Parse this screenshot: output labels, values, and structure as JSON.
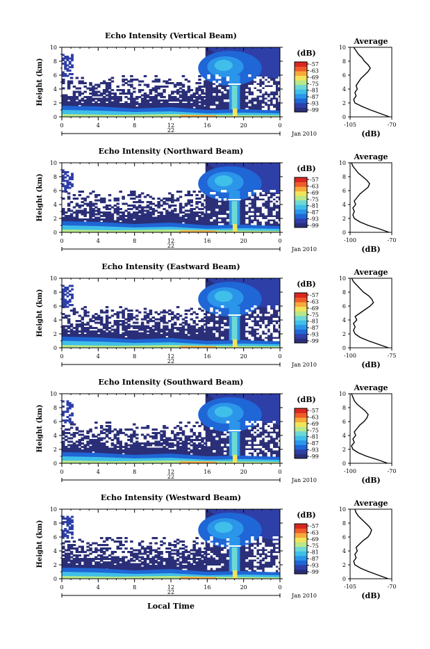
{
  "figure": {
    "xlabel_bottom": "Local Time",
    "date_label": "Jan 2010",
    "day_label": "22"
  },
  "colors": {
    "scale": [
      "#2a2f7a",
      "#2e3fa8",
      "#1f66d6",
      "#2b95ea",
      "#3fbfe9",
      "#6fd8d4",
      "#b8e889",
      "#f2e45a",
      "#f7a93a",
      "#ef5b2a",
      "#d9271f"
    ],
    "background": "#ffffff",
    "clutter": "#2b2f78"
  },
  "chart_data": [
    {
      "type": "heatmap",
      "title": "Echo Intensity (Vertical Beam)",
      "ylabel": "Height (km)",
      "xticks": [
        "0",
        "4",
        "8",
        "12",
        "16",
        "20",
        "0"
      ],
      "yticks": [
        "0",
        "2",
        "4",
        "6",
        "8",
        "10"
      ],
      "xlim": [
        0,
        24
      ],
      "ylim": [
        0,
        10
      ],
      "colorbar": {
        "label": "(dB)",
        "ticks": [
          "-57",
          "-63",
          "-69",
          "-75",
          "-81",
          "-87",
          "-93",
          "-99"
        ]
      },
      "profile": {
        "title": "Average",
        "xlabel": "(dB)",
        "xticks": [
          "-105",
          "-70"
        ],
        "xlim": [
          -105,
          -70
        ],
        "yticks": [
          "0",
          "2",
          "4",
          "6",
          "8",
          "10"
        ],
        "heights": [
          0,
          0.5,
          1,
          1.5,
          2,
          2.5,
          3,
          3.5,
          4,
          4.5,
          5,
          5.5,
          6,
          6.5,
          7,
          7.5,
          8,
          8.5,
          9,
          9.5,
          10
        ],
        "values": [
          -72,
          -80,
          -88,
          -95,
          -101,
          -102,
          -100,
          -101,
          -99,
          -100,
          -98,
          -96,
          -93,
          -90,
          -88,
          -90,
          -93,
          -95,
          -98,
          -100,
          -102
        ]
      }
    },
    {
      "type": "heatmap",
      "title": "Echo Intensity (Northward Beam)",
      "ylabel": "Height (km)",
      "xticks": [
        "0",
        "4",
        "8",
        "12",
        "16",
        "20",
        "0"
      ],
      "yticks": [
        "0",
        "2",
        "4",
        "6",
        "8",
        "10"
      ],
      "xlim": [
        0,
        24
      ],
      "ylim": [
        0,
        10
      ],
      "colorbar": {
        "label": "(dB)",
        "ticks": [
          "-57",
          "-63",
          "-69",
          "-75",
          "-81",
          "-87",
          "-93",
          "-99"
        ]
      },
      "profile": {
        "title": "Average",
        "xlabel": "(dB)",
        "xticks": [
          "-100",
          "-70"
        ],
        "xlim": [
          -100,
          -70
        ],
        "yticks": [
          "0",
          "2",
          "4",
          "6",
          "8",
          "10"
        ],
        "heights": [
          0,
          0.5,
          1,
          1.5,
          2,
          2.5,
          3,
          3.5,
          4,
          4.5,
          5,
          5.5,
          6,
          6.5,
          7,
          7.5,
          8,
          8.5,
          9,
          9.5,
          10
        ],
        "values": [
          -72,
          -79,
          -87,
          -93,
          -97,
          -98,
          -97,
          -98,
          -96,
          -97,
          -95,
          -93,
          -90,
          -87,
          -86,
          -88,
          -91,
          -94,
          -96,
          -98,
          -99
        ]
      }
    },
    {
      "type": "heatmap",
      "title": "Echo Intensity (Eastward Beam)",
      "ylabel": "Height (km)",
      "xticks": [
        "0",
        "4",
        "8",
        "12",
        "16",
        "20",
        "0"
      ],
      "yticks": [
        "0",
        "2",
        "4",
        "6",
        "8",
        "10"
      ],
      "xlim": [
        0,
        24
      ],
      "ylim": [
        0,
        10
      ],
      "colorbar": {
        "label": "(dB)",
        "ticks": [
          "-57",
          "-63",
          "-69",
          "-75",
          "-81",
          "-87",
          "-93",
          "-99"
        ]
      },
      "profile": {
        "title": "Average",
        "xlabel": "(dB)",
        "xticks": [
          "-100",
          "-75"
        ],
        "xlim": [
          -100,
          -75
        ],
        "yticks": [
          "0",
          "2",
          "4",
          "6",
          "8",
          "10"
        ],
        "heights": [
          0,
          0.5,
          1,
          1.5,
          2,
          2.5,
          3,
          3.5,
          4,
          4.5,
          5,
          5.5,
          6,
          6.5,
          7,
          7.5,
          8,
          8.5,
          9,
          9.5,
          10
        ],
        "values": [
          -77,
          -83,
          -89,
          -94,
          -97,
          -98,
          -97,
          -98,
          -96,
          -97,
          -94,
          -91,
          -88,
          -86,
          -87,
          -89,
          -92,
          -94,
          -96,
          -98,
          -99
        ]
      }
    },
    {
      "type": "heatmap",
      "title": "Echo Intensity (Southward Beam)",
      "ylabel": "Height (km)",
      "xticks": [
        "0",
        "4",
        "8",
        "12",
        "16",
        "20",
        "0"
      ],
      "yticks": [
        "0",
        "2",
        "4",
        "6",
        "8",
        "10"
      ],
      "xlim": [
        0,
        24
      ],
      "ylim": [
        0,
        10
      ],
      "colorbar": {
        "label": "(dB)",
        "ticks": [
          "-57",
          "-63",
          "-69",
          "-75",
          "-81",
          "-87",
          "-93",
          "-99"
        ]
      },
      "profile": {
        "title": "Average",
        "xlabel": "(dB)",
        "xticks": [
          "-100",
          "-70"
        ],
        "xlim": [
          -100,
          -70
        ],
        "yticks": [
          "0",
          "2",
          "4",
          "6",
          "8",
          "10"
        ],
        "heights": [
          0,
          0.5,
          1,
          1.5,
          2,
          2.5,
          3,
          3.5,
          4,
          4.5,
          5,
          5.5,
          6,
          6.5,
          7,
          7.5,
          8,
          8.5,
          9,
          9.5,
          10
        ],
        "values": [
          -73,
          -80,
          -88,
          -94,
          -98,
          -99,
          -97,
          -98,
          -96,
          -97,
          -95,
          -93,
          -90,
          -88,
          -87,
          -89,
          -92,
          -95,
          -97,
          -98,
          -99
        ]
      }
    },
    {
      "type": "heatmap",
      "title": "Echo Intensity (Westward Beam)",
      "ylabel": "Height (km)",
      "xticks": [
        "0",
        "4",
        "8",
        "12",
        "16",
        "20",
        "0"
      ],
      "yticks": [
        "0",
        "2",
        "4",
        "6",
        "8",
        "10"
      ],
      "xlim": [
        0,
        24
      ],
      "ylim": [
        0,
        10
      ],
      "colorbar": {
        "label": "(dB)",
        "ticks": [
          "-57",
          "-63",
          "-69",
          "-75",
          "-81",
          "-87",
          "-93",
          "-99"
        ]
      },
      "profile": {
        "title": "Average",
        "xlabel": "(dB)",
        "xticks": [
          "-105",
          "-70"
        ],
        "xlim": [
          -105,
          -70
        ],
        "yticks": [
          "0",
          "2",
          "4",
          "6",
          "8",
          "10"
        ],
        "heights": [
          0,
          0.5,
          1,
          1.5,
          2,
          2.5,
          3,
          3.5,
          4,
          4.5,
          5,
          5.5,
          6,
          6.5,
          7,
          7.5,
          8,
          8.5,
          9,
          9.5,
          10
        ],
        "values": [
          -73,
          -81,
          -89,
          -96,
          -101,
          -102,
          -100,
          -101,
          -99,
          -100,
          -97,
          -94,
          -90,
          -88,
          -87,
          -89,
          -92,
          -95,
          -98,
          -100,
          -101
        ]
      }
    }
  ]
}
